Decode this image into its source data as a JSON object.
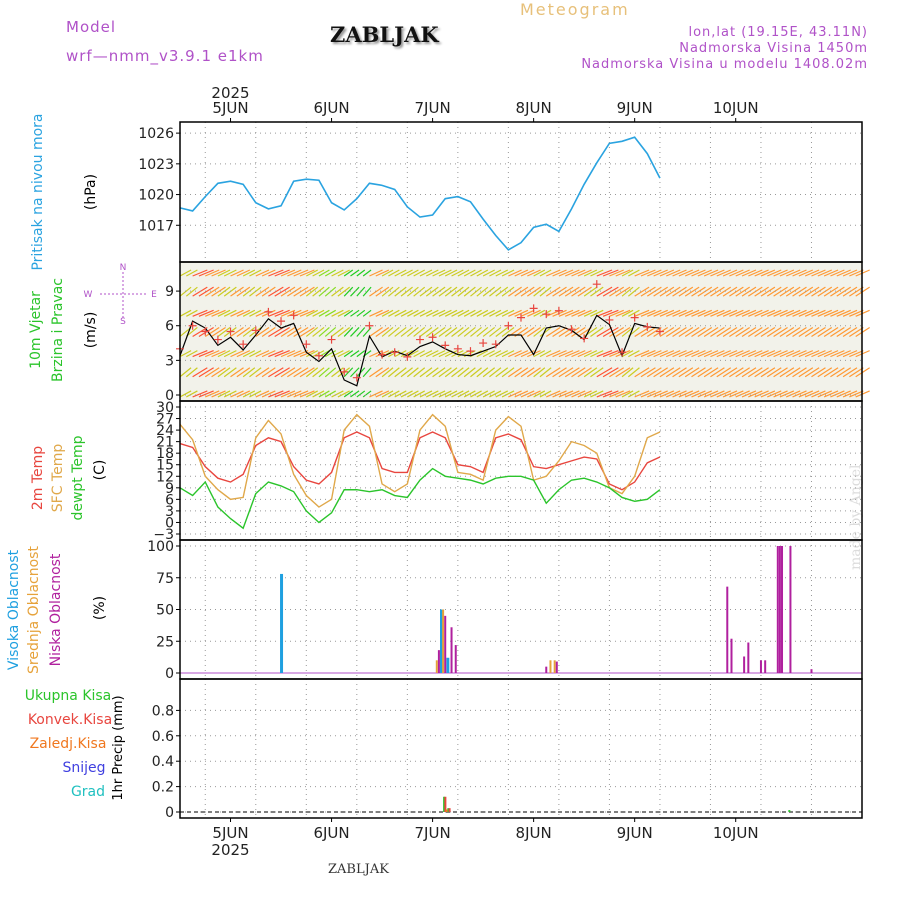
{
  "header": {
    "model_label": "Model",
    "model_run": "wrf—nmm_v3.9.1  e1km",
    "station": "ZABLJAK",
    "product": "Meteogram",
    "coords": "lon,lat (19.15E, 43.11N)",
    "elevation": "Nadmorska Visina 1450m",
    "model_elevation": "Nadmorska Visina u modelu 1408.02m"
  },
  "footer": {
    "station": "ZABLJAK",
    "watermark": "made by Angel"
  },
  "colors": {
    "pressure": "#2aa3e0",
    "temp2m": "#e8463f",
    "sfc_temp": "#e0a84a",
    "dewpoint": "#2bc42b",
    "wind_speed": "#000000",
    "gust": "#e8463f",
    "high_cloud": "#1fa0e0",
    "mid_cloud": "#e6a23a",
    "low_cloud": "#b0209e",
    "total_rain": "#2bc42b",
    "conv_rain": "#e8463f",
    "strat_rain": "#f07820",
    "snow": "#4040e0",
    "hail": "#20c0c0"
  },
  "chart_data": [
    {
      "type": "line",
      "panel": "pressure",
      "ylabel": "(hPa)",
      "side_labels": [
        "Pritisak na nivou mora"
      ],
      "yticks": [
        1017,
        1020,
        1023,
        1026
      ],
      "ylim": [
        1014,
        1026.5
      ],
      "x_start_label": "4JUN 12h",
      "x_step_hours": 3,
      "series": [
        {
          "values": [
            1018.7,
            1018.4,
            1019.8,
            1021.1,
            1021.3,
            1021.0,
            1019.2,
            1018.6,
            1018.9,
            1021.3,
            1021.5,
            1021.4,
            1019.2,
            1018.5,
            1019.6,
            1021.1,
            1020.9,
            1020.5,
            1018.8,
            1017.8,
            1018.0,
            1019.6,
            1019.8,
            1019.3,
            1017.6,
            1016.0,
            1014.6,
            1015.3,
            1016.8,
            1017.1,
            1016.4,
            1018.6,
            1021.0,
            1023.1,
            1025.0,
            1025.2,
            1025.6,
            1024.0,
            1021.6
          ]
        }
      ]
    },
    {
      "type": "line",
      "panel": "wind",
      "ylabel": "(m/s)",
      "side_labels": [
        "10m Vjetar",
        "Brzina i Pravac"
      ],
      "compass": [
        "N",
        "W",
        "E",
        "S"
      ],
      "yticks": [
        0,
        3,
        6,
        9
      ],
      "ylim": [
        0,
        11
      ],
      "x_start_label": "4JUN 12h",
      "x_step_hours": 3,
      "series": [
        {
          "name": "speed",
          "values": [
            3.4,
            6.4,
            5.8,
            4.3,
            5.0,
            3.9,
            5.2,
            6.6,
            5.8,
            6.2,
            3.7,
            2.9,
            4.0,
            1.3,
            0.8,
            5.1,
            3.3,
            3.8,
            3.4,
            4.2,
            4.6,
            4.0,
            3.5,
            3.4,
            3.8,
            4.2,
            5.2,
            5.2,
            3.5,
            5.8,
            6.0,
            5.6,
            4.8,
            6.9,
            6.1,
            3.4,
            6.2,
            5.9,
            5.8
          ]
        },
        {
          "name": "gust",
          "values": [
            4.0,
            6.0,
            5.5,
            4.8,
            5.5,
            4.4,
            5.6,
            7.2,
            6.4,
            6.9,
            4.4,
            3.4,
            4.8,
            2.0,
            1.5,
            6.0,
            3.5,
            3.7,
            3.3,
            4.8,
            5.0,
            4.3,
            4.0,
            3.8,
            4.5,
            4.4,
            6.0,
            6.7,
            7.5,
            7.0,
            7.3,
            5.7,
            4.9,
            9.6,
            6.5,
            3.7,
            6.7,
            5.9,
            5.5
          ]
        }
      ]
    },
    {
      "type": "line",
      "panel": "temperature",
      "ylabel": "(C)",
      "side_labels": [
        "2m Temp",
        "SFC Temp",
        "dewpt Temp"
      ],
      "yticks": [
        -3,
        0,
        3,
        6,
        9,
        12,
        15,
        18,
        21,
        24,
        27,
        30
      ],
      "ylim": [
        -3,
        30
      ],
      "x_start_label": "4JUN 12h",
      "x_step_hours": 3,
      "series": [
        {
          "name": "2m Temp",
          "values": [
            20.5,
            19.5,
            14.5,
            11.5,
            10.5,
            12.5,
            20.0,
            22.0,
            21.0,
            14.5,
            11.0,
            10.0,
            13.0,
            22.0,
            23.5,
            22.0,
            14.0,
            13.0,
            13.0,
            22.0,
            23.5,
            22.0,
            15.0,
            14.5,
            13.0,
            22.0,
            23.0,
            21.5,
            14.5,
            14.0,
            15.0,
            16.0,
            17.0,
            16.5,
            10.0,
            8.5,
            10.5,
            15.5,
            17.0
          ]
        },
        {
          "name": "SFC Temp",
          "values": [
            25.5,
            21.5,
            12.0,
            8.5,
            6.0,
            6.5,
            22.0,
            26.5,
            23.0,
            12.5,
            7.0,
            4.0,
            6.0,
            24.0,
            28.0,
            25.0,
            10.0,
            8.0,
            10.0,
            24.0,
            28.0,
            25.0,
            13.0,
            12.5,
            11.0,
            24.0,
            27.5,
            25.0,
            11.0,
            12.0,
            16.0,
            21.0,
            20.0,
            18.0,
            9.0,
            7.5,
            12.0,
            22.0,
            23.5
          ]
        },
        {
          "name": "dewpt Temp",
          "values": [
            9.0,
            7.0,
            10.5,
            4.0,
            1.0,
            -1.5,
            7.5,
            10.5,
            9.5,
            8.0,
            3.0,
            0.0,
            2.5,
            8.5,
            8.5,
            8.0,
            8.5,
            7.0,
            6.5,
            11.0,
            14.0,
            12.0,
            11.5,
            11.0,
            10.0,
            11.5,
            12.0,
            12.0,
            11.0,
            5.0,
            8.5,
            11.0,
            11.5,
            10.5,
            9.0,
            6.5,
            5.5,
            6.0,
            8.5
          ]
        }
      ]
    },
    {
      "type": "bar",
      "panel": "cloud",
      "ylabel": "(%)",
      "side_labels": [
        "Visoka Oblacnost",
        "Srednja Oblacnost",
        "Niska Oblacnost"
      ],
      "yticks": [
        0,
        25,
        50,
        75,
        100
      ],
      "ylim": [
        0,
        100
      ],
      "x_start_label": "4JUN 12h",
      "series": [
        {
          "name": "Visoka Oblacnost",
          "points": [
            {
              "hour": 24,
              "value": 78
            },
            {
              "hour": 62,
              "value": 50
            },
            {
              "hour": 63.5,
              "value": 12
            }
          ]
        },
        {
          "name": "Srednja Oblacnost",
          "points": [
            {
              "hour": 61,
              "value": 10
            },
            {
              "hour": 62.5,
              "value": 50
            },
            {
              "hour": 88,
              "value": 10
            },
            {
              "hour": 89,
              "value": 10
            }
          ]
        },
        {
          "name": "Niska Oblacnost",
          "points": [
            {
              "hour": 61.5,
              "value": 18
            },
            {
              "hour": 63,
              "value": 45
            },
            {
              "hour": 64.5,
              "value": 36
            },
            {
              "hour": 65.5,
              "value": 22
            },
            {
              "hour": 87,
              "value": 5
            },
            {
              "hour": 89.5,
              "value": 9
            },
            {
              "hour": 130,
              "value": 68
            },
            {
              "hour": 131,
              "value": 27
            },
            {
              "hour": 134,
              "value": 13
            },
            {
              "hour": 135,
              "value": 24
            },
            {
              "hour": 138,
              "value": 10
            },
            {
              "hour": 139,
              "value": 10
            },
            {
              "hour": 142,
              "value": 100
            },
            {
              "hour": 142.5,
              "value": 100
            },
            {
              "hour": 143,
              "value": 100
            },
            {
              "hour": 145,
              "value": 100
            },
            {
              "hour": 150,
              "value": 3
            }
          ]
        }
      ]
    },
    {
      "type": "bar",
      "panel": "precip",
      "ylabel": "1hr Precip (mm)",
      "side_labels": [
        "Ukupna Kisa",
        "Konvek.Kisa",
        "Zaledj.Kisa",
        "Snijeg",
        "Grad"
      ],
      "yticks": [
        0,
        0.2,
        0.4,
        0.6,
        0.8
      ],
      "ylim": [
        0,
        1.0
      ],
      "x_start_label": "4JUN 12h",
      "series": [
        {
          "name": "Ukupna Kisa",
          "points": [
            {
              "hour": 62.5,
              "value": 0.12
            },
            {
              "hour": 63.5,
              "value": 0.03
            },
            {
              "hour": 144.5,
              "value": 0.015
            }
          ]
        },
        {
          "name": "Konvek.Kisa",
          "points": [
            {
              "hour": 62.8,
              "value": 0.12
            },
            {
              "hour": 63.8,
              "value": 0.03
            }
          ]
        },
        {
          "name": "Zaledj.Kisa",
          "points": [
            {
              "hour": 63.1,
              "value": 0.02
            }
          ]
        }
      ]
    }
  ],
  "xaxis": {
    "year": "2025",
    "day_labels": [
      "5JUN",
      "6JUN",
      "7JUN",
      "8JUN",
      "9JUN",
      "10JUN"
    ]
  }
}
